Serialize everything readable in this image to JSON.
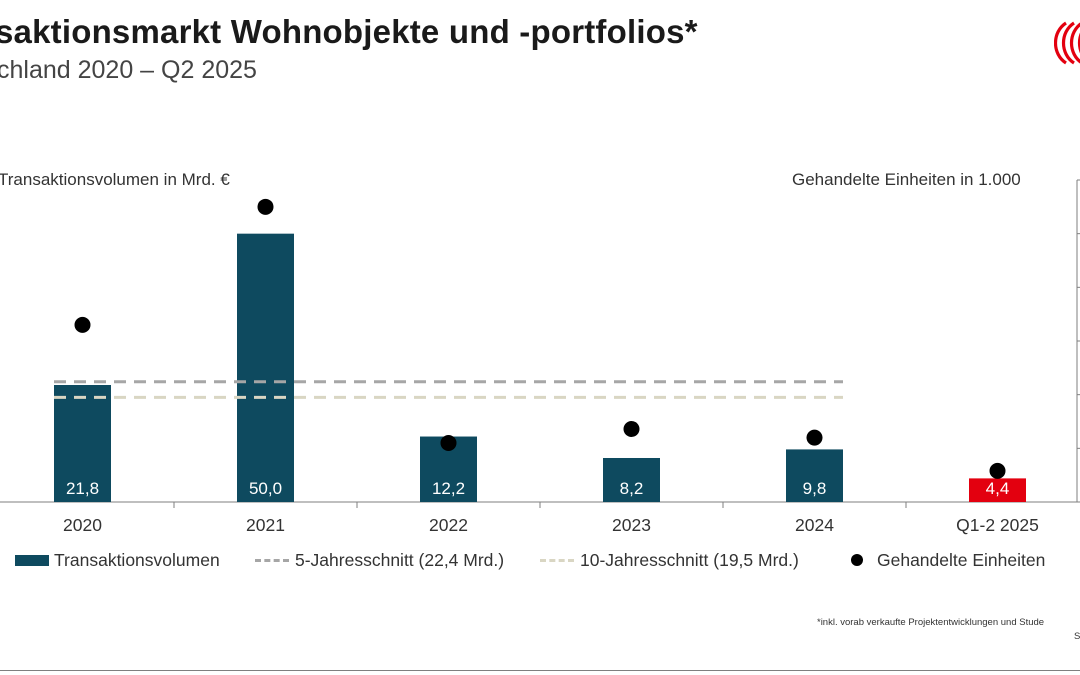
{
  "title": "saktionsmarkt Wohnobjekte und -portfolios*",
  "subtitle": "chland 2020 – Q2 2025",
  "colors": {
    "bar": "#0e4a5f",
    "bar_highlight": "#e3000f",
    "avg5": "#a6a6a6",
    "avg10": "#d9d6c3",
    "dots": "#000000",
    "logo": "#e3000f"
  },
  "logo_icon": "jll-logo-icon",
  "chart_data": {
    "type": "bar",
    "categories": [
      "2020",
      "2021",
      "2022",
      "2023",
      "2024",
      "Q1-2 2025"
    ],
    "series": [
      {
        "name": "Transaktionsvolumen",
        "type": "bar",
        "axis": "left",
        "values": [
          21.8,
          50.0,
          12.2,
          8.2,
          9.8,
          4.4
        ],
        "labels": [
          "21,8",
          "50,0",
          "12,2",
          "8,2",
          "9,8",
          "4,4"
        ],
        "highlight_index": 5
      },
      {
        "name": "Gehandelte Einheiten",
        "type": "scatter",
        "axis": "right",
        "values": [
          165,
          275,
          55,
          68,
          60,
          29
        ]
      },
      {
        "name": "5-Jahresschnitt (22,4 Mrd.)",
        "type": "line",
        "style": "dashed",
        "axis": "left",
        "value": 22.4
      },
      {
        "name": "10-Jahresschnitt (19,5 Mrd.)",
        "type": "line",
        "style": "dashed",
        "axis": "left",
        "value": 19.5
      }
    ],
    "ylabel_left": "Transaktionsvolumen in Mrd. €",
    "ylabel_right": "Gehandelte Einheiten in 1.000",
    "ylim_left": [
      0,
      60
    ],
    "ylim_right": [
      0,
      300
    ],
    "legend_position": "bottom",
    "grid": false
  },
  "footnote": "*inkl. vorab verkaufte Projektentwicklungen und Stude",
  "source": "S"
}
